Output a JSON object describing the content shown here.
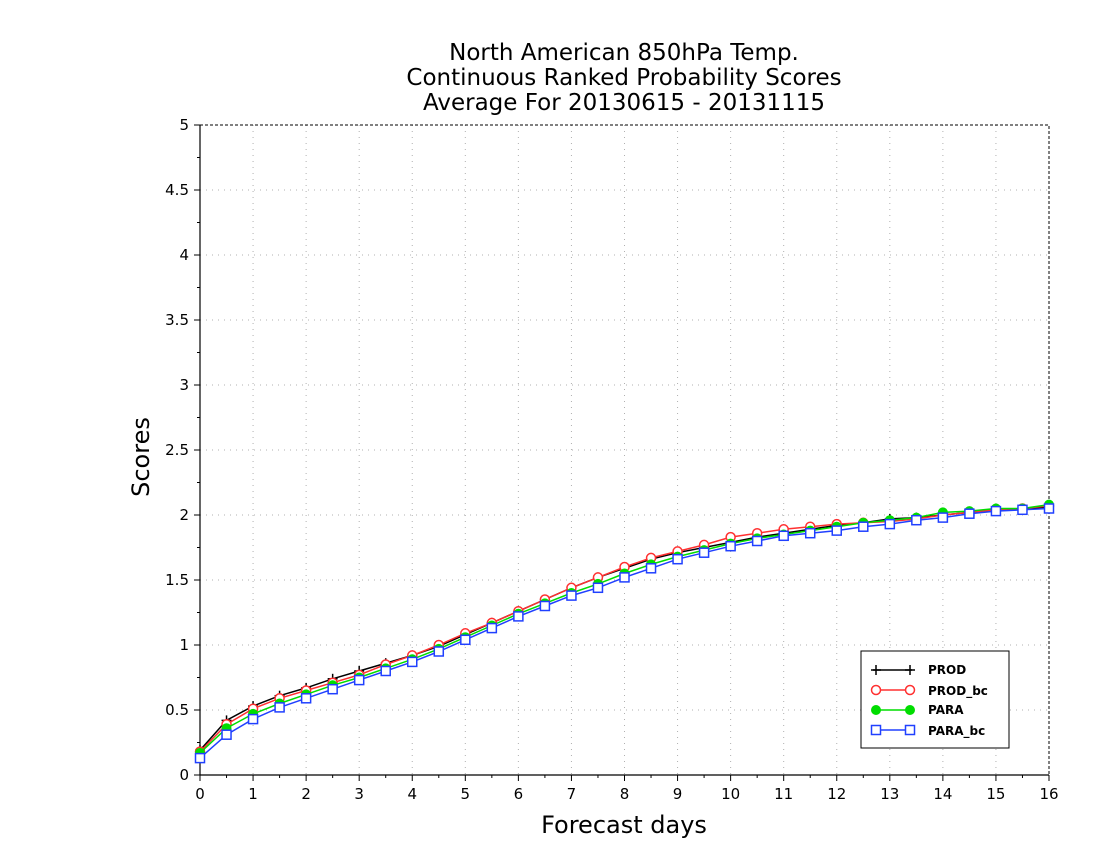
{
  "chart_data": {
    "type": "line",
    "title": [
      "North American 850hPa Temp.",
      "Continuous Ranked Probability Scores",
      "Average For 20130615 - 20131115"
    ],
    "xlabel": "Forecast days",
    "ylabel": "Scores",
    "xlim": [
      0,
      16
    ],
    "ylim": [
      0,
      5
    ],
    "xticks": [
      0,
      1,
      2,
      3,
      4,
      5,
      6,
      7,
      8,
      9,
      10,
      11,
      12,
      13,
      14,
      15,
      16
    ],
    "yticks": [
      0,
      0.5,
      1,
      1.5,
      2,
      2.5,
      3,
      3.5,
      4,
      4.5,
      5
    ],
    "ytick_labels": [
      "0",
      "0.5",
      "1",
      "1.5",
      "2",
      "2.5",
      "3",
      "3.5",
      "4",
      "4.5",
      "5"
    ],
    "grid": true,
    "legend_position": "bottom-right",
    "x": [
      0,
      0.5,
      1,
      1.5,
      2,
      2.5,
      3,
      3.5,
      4,
      4.5,
      5,
      5.5,
      6,
      6.5,
      7,
      7.5,
      8,
      8.5,
      9,
      9.5,
      10,
      10.5,
      11,
      11.5,
      12,
      12.5,
      13,
      13.5,
      14,
      14.5,
      15,
      15.5,
      16
    ],
    "series": [
      {
        "name": "PROD",
        "color": "#000000",
        "marker": "plus",
        "values": [
          0.19,
          0.42,
          0.53,
          0.61,
          0.67,
          0.74,
          0.8,
          0.86,
          0.92,
          0.99,
          1.08,
          1.17,
          1.26,
          1.35,
          1.44,
          1.52,
          1.59,
          1.66,
          1.71,
          1.75,
          1.79,
          1.83,
          1.86,
          1.89,
          1.92,
          1.94,
          1.97,
          1.98,
          2.0,
          2.02,
          2.04,
          2.05,
          2.06
        ]
      },
      {
        "name": "PROD_bc",
        "color": "#ff3030",
        "marker": "open-circle",
        "values": [
          0.18,
          0.39,
          0.51,
          0.59,
          0.65,
          0.71,
          0.77,
          0.85,
          0.92,
          1.0,
          1.09,
          1.17,
          1.26,
          1.35,
          1.44,
          1.52,
          1.6,
          1.67,
          1.72,
          1.77,
          1.83,
          1.86,
          1.89,
          1.91,
          1.93,
          1.94,
          1.95,
          1.97,
          2.0,
          2.02,
          2.04,
          2.05,
          2.07
        ]
      },
      {
        "name": "PARA",
        "color": "#00dd00",
        "marker": "filled-circle",
        "values": [
          0.17,
          0.36,
          0.47,
          0.55,
          0.62,
          0.69,
          0.75,
          0.82,
          0.89,
          0.97,
          1.06,
          1.15,
          1.24,
          1.32,
          1.4,
          1.47,
          1.55,
          1.62,
          1.68,
          1.73,
          1.78,
          1.82,
          1.85,
          1.88,
          1.91,
          1.94,
          1.96,
          1.98,
          2.02,
          2.03,
          2.05,
          2.05,
          2.08
        ]
      },
      {
        "name": "PARA_bc",
        "color": "#2040ff",
        "marker": "open-square",
        "values": [
          0.13,
          0.31,
          0.43,
          0.52,
          0.59,
          0.66,
          0.73,
          0.8,
          0.87,
          0.95,
          1.04,
          1.13,
          1.22,
          1.3,
          1.38,
          1.44,
          1.52,
          1.59,
          1.66,
          1.71,
          1.76,
          1.8,
          1.84,
          1.86,
          1.88,
          1.91,
          1.93,
          1.96,
          1.98,
          2.01,
          2.03,
          2.04,
          2.05
        ]
      }
    ]
  }
}
